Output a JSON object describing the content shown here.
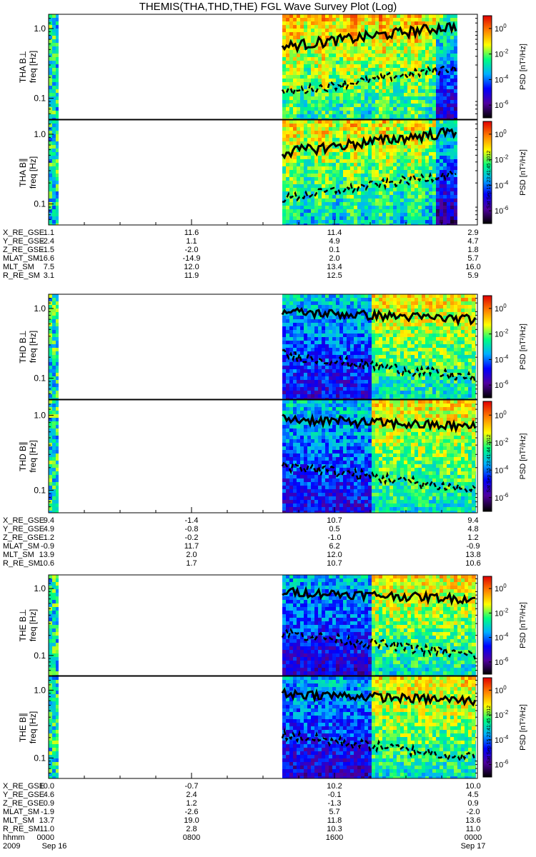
{
  "title": "THEMIS(THA,THD,THE) FGL Wave Survey Plot (Log)",
  "colorbar": {
    "label": "PSD [nT²/Hz]",
    "tick_exponents": [
      "0",
      "-2",
      "-4",
      "-6"
    ],
    "tick_base": "10",
    "stamps": [
      "Sat Sep 15 23:41:45 2012",
      "Sat Sep 15 23:41:44 2012",
      "Sat Sep 15 23:41:45 2012"
    ]
  },
  "freq_axis": {
    "ylabel": "freq [Hz]",
    "ticks": [
      "1.0",
      "0.1"
    ],
    "ylim": [
      0.05,
      1.6
    ],
    "scale": "log"
  },
  "chart_data": {
    "type": "heatmap",
    "x_range": [
      "2009-09-16 00:00",
      "2009-09-17 00:00"
    ],
    "panels": [
      {
        "probe": "THA",
        "component": "B⊥",
        "label": "THA B⊥"
      },
      {
        "probe": "THA",
        "component": "B∥",
        "label": "THA B∥"
      },
      {
        "probe": "THD",
        "component": "B⊥",
        "label": "THD B⊥"
      },
      {
        "probe": "THD",
        "component": "B∥",
        "label": "THD B∥"
      },
      {
        "probe": "THE",
        "component": "B⊥",
        "label": "THE B⊥"
      },
      {
        "probe": "THE",
        "component": "B∥",
        "label": "THE B∥"
      }
    ],
    "colorscale": {
      "scale": "log",
      "range": [
        "1e-7",
        "1e1"
      ],
      "colors": [
        "#000000",
        "#5000a0",
        "#0000ff",
        "#00b0ff",
        "#00ff80",
        "#ffff00",
        "#ff8000",
        "#e00000"
      ]
    }
  },
  "ephemeris": [
    {
      "probe": "THA",
      "rows": [
        {
          "label": "X_RE_GSE",
          "values": [
            "1.1",
            "11.6",
            "11.4",
            "2.9"
          ]
        },
        {
          "label": "Y_RE_GSE",
          "values": [
            "-2.4",
            "1.1",
            "4.9",
            "4.7"
          ]
        },
        {
          "label": "Z_RE_GSE",
          "values": [
            "-1.5",
            "-2.0",
            "0.1",
            "1.8"
          ]
        },
        {
          "label": "MLAT_SM",
          "values": [
            "-16.6",
            "-14.9",
            "2.0",
            "5.7"
          ]
        },
        {
          "label": "MLT_SM",
          "values": [
            "7.5",
            "12.0",
            "13.4",
            "16.0"
          ]
        },
        {
          "label": "R_RE_SM",
          "values": [
            "3.1",
            "11.9",
            "12.5",
            "5.9"
          ]
        }
      ]
    },
    {
      "probe": "THD",
      "rows": [
        {
          "label": "X_RE_GSE",
          "values": [
            "9.4",
            "-1.4",
            "10.7",
            "9.4"
          ]
        },
        {
          "label": "Y_RE_GSE",
          "values": [
            "4.9",
            "-0.8",
            "0.5",
            "4.8"
          ]
        },
        {
          "label": "Z_RE_GSE",
          "values": [
            "1.2",
            "-0.2",
            "-1.0",
            "1.2"
          ]
        },
        {
          "label": "MLAT_SM",
          "values": [
            "-0.9",
            "11.7",
            "6.2",
            "-0.9"
          ]
        },
        {
          "label": "MLT_SM",
          "values": [
            "13.9",
            "2.0",
            "12.0",
            "13.8"
          ]
        },
        {
          "label": "R_RE_SM",
          "values": [
            "10.6",
            "1.7",
            "10.7",
            "10.6"
          ]
        }
      ]
    },
    {
      "probe": "THE",
      "rows": [
        {
          "label": "X_RE_GSE",
          "values": [
            "10.0",
            "-0.7",
            "10.2",
            "10.0"
          ]
        },
        {
          "label": "Y_RE_GSE",
          "values": [
            "4.6",
            "2.4",
            "-0.1",
            "4.5"
          ]
        },
        {
          "label": "Z_RE_GSE",
          "values": [
            "0.9",
            "1.2",
            "-1.3",
            "0.9"
          ]
        },
        {
          "label": "MLAT_SM",
          "values": [
            "-1.9",
            "-2.6",
            "5.7",
            "-2.0"
          ]
        },
        {
          "label": "MLT_SM",
          "values": [
            "13.7",
            "19.0",
            "11.8",
            "13.6"
          ]
        },
        {
          "label": "R_RE_SM",
          "values": [
            "11.0",
            "2.8",
            "10.3",
            "11.0"
          ]
        },
        {
          "label": "hhmm",
          "values": [
            "0000",
            "0800",
            "1600",
            "0000"
          ]
        }
      ]
    }
  ],
  "date_row": {
    "year": "2009",
    "start": "Sep 16",
    "end": "Sep 17"
  }
}
